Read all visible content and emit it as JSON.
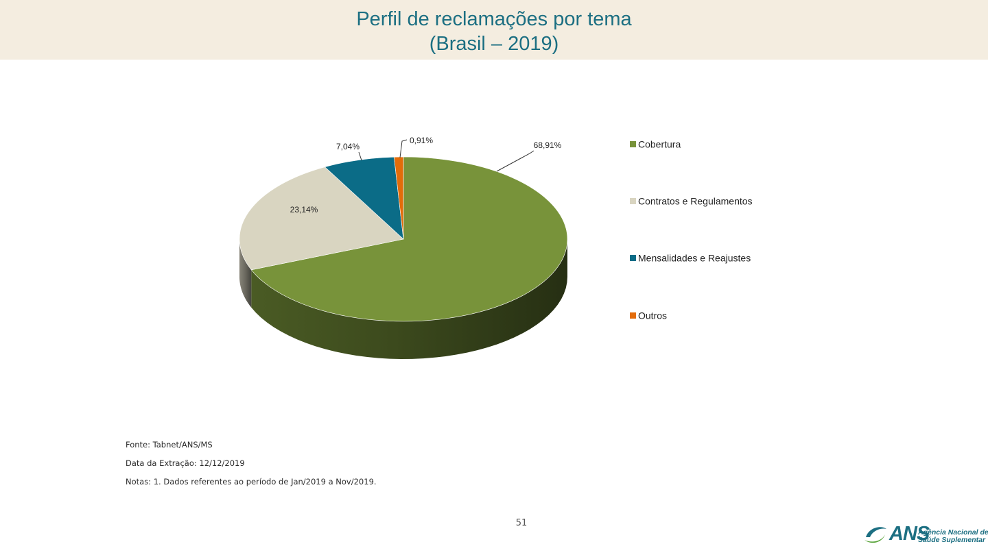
{
  "title": {
    "line1": "Perfil de reclamações por tema",
    "line2": "(Brasil – 2019)"
  },
  "chart_data": {
    "type": "pie",
    "categories": [
      "Cobertura",
      "Contratos e Regulamentos",
      "Mensalidades e Reajustes",
      "Outros"
    ],
    "values": [
      68.91,
      23.14,
      7.04,
      0.91
    ],
    "data_labels": [
      "68,91%",
      "23,14%",
      "7,04%",
      "0,91%"
    ],
    "colors": [
      "#78933a",
      "#d9d5c1",
      "#0b6c87",
      "#e36c0a"
    ],
    "legend_position": "right",
    "three_d": true
  },
  "notes": {
    "source": "Fonte: Tabnet/ANS/MS",
    "extraction": "Data da Extração: 12/12/2019",
    "notes": "Notas:  1. Dados referentes ao período de Jan/2019 a Nov/2019."
  },
  "page_number": "51",
  "logo": {
    "mark": "ANS",
    "line1": "Agência Nacional de",
    "line2": "Saúde Suplementar"
  }
}
